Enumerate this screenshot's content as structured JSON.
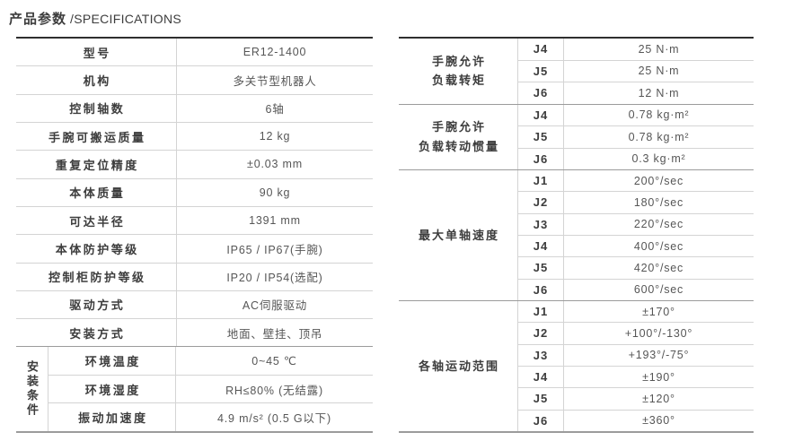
{
  "page": {
    "title_cn": "产品参数",
    "title_en": "/SPECIFICATIONS"
  },
  "colors": {
    "text_dark": "#3d3d3d",
    "text_value": "#565656",
    "border_dark": "#2f2f2f",
    "border_medium": "#9b9b9b",
    "border_light": "#d4d4d4",
    "background": "#ffffff"
  },
  "left_table": {
    "rows": [
      {
        "label": "型号",
        "value": "ER12-1400"
      },
      {
        "label": "机构",
        "value": "多关节型机器人"
      },
      {
        "label": "控制轴数",
        "value": "6轴"
      },
      {
        "label": "手腕可搬运质量",
        "value": "12 kg"
      },
      {
        "label": "重复定位精度",
        "value": "±0.03 mm"
      },
      {
        "label": "本体质量",
        "value": "90 kg"
      },
      {
        "label": "可达半径",
        "value": "1391 mm"
      },
      {
        "label": "本体防护等级",
        "value": "IP65 / IP67(手腕)"
      },
      {
        "label": "控制柜防护等级",
        "value": "IP20 / IP54(选配)"
      },
      {
        "label": "驱动方式",
        "value": "AC伺服驱动"
      },
      {
        "label": "安装方式",
        "value": "地面、壁挂、顶吊"
      }
    ],
    "group": {
      "label": "安装条件",
      "rows": [
        {
          "label": "环境温度",
          "value": "0~45 ℃"
        },
        {
          "label": "环境湿度",
          "value": "RH≤80% (无结露)"
        },
        {
          "label": "振动加速度",
          "value": "4.9 m/s² (0.5 G以下)"
        }
      ]
    }
  },
  "right_table": {
    "groups": [
      {
        "label_lines": [
          "手腕允许",
          "负载转矩"
        ],
        "rows": [
          {
            "axis": "J4",
            "value": "25 N·m"
          },
          {
            "axis": "J5",
            "value": "25 N·m"
          },
          {
            "axis": "J6",
            "value": "12 N·m"
          }
        ]
      },
      {
        "label_lines": [
          "手腕允许",
          "负载转动惯量"
        ],
        "rows": [
          {
            "axis": "J4",
            "value": "0.78 kg·m²"
          },
          {
            "axis": "J5",
            "value": "0.78 kg·m²"
          },
          {
            "axis": "J6",
            "value": "0.3 kg·m²"
          }
        ]
      },
      {
        "label_lines": [
          "最大单轴速度"
        ],
        "rows": [
          {
            "axis": "J1",
            "value": "200°/sec"
          },
          {
            "axis": "J2",
            "value": "180°/sec"
          },
          {
            "axis": "J3",
            "value": "220°/sec"
          },
          {
            "axis": "J4",
            "value": "400°/sec"
          },
          {
            "axis": "J5",
            "value": "420°/sec"
          },
          {
            "axis": "J6",
            "value": "600°/sec"
          }
        ]
      },
      {
        "label_lines": [
          "各轴运动范围"
        ],
        "rows": [
          {
            "axis": "J1",
            "value": "±170°"
          },
          {
            "axis": "J2",
            "value": "+100°/-130°"
          },
          {
            "axis": "J3",
            "value": "+193°/-75°"
          },
          {
            "axis": "J4",
            "value": "±190°"
          },
          {
            "axis": "J5",
            "value": "±120°"
          },
          {
            "axis": "J6",
            "value": "±360°"
          }
        ]
      }
    ]
  }
}
